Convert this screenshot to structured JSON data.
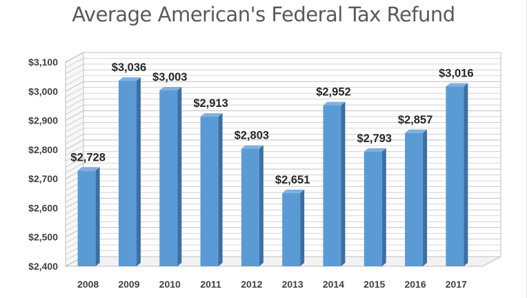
{
  "chart_data": {
    "type": "bar",
    "title": "Average American's Federal Tax Refund",
    "categories": [
      "2008",
      "2009",
      "2010",
      "2011",
      "2012",
      "2013",
      "2014",
      "2015",
      "2016",
      "2017"
    ],
    "values": [
      2728,
      3036,
      3003,
      2913,
      2803,
      2651,
      2952,
      2793,
      2857,
      3016
    ],
    "data_labels": [
      "$2,728",
      "$3,036",
      "$3,003",
      "$2,913",
      "$2,803",
      "$2,651",
      "$2,952",
      "$2,793",
      "$2,857",
      "$3,016"
    ],
    "y_ticks": [
      "$2,400",
      "$2,500",
      "$2,600",
      "$2,700",
      "$2,800",
      "$2,900",
      "$3,000",
      "$3,100"
    ],
    "ylim": [
      2400,
      3100
    ],
    "grid": true,
    "style": "3d-column",
    "colors": {
      "bar": "#5b9bd5",
      "bar_side": "#3c6fa3",
      "bar_top": "#7fb1e0",
      "grid": "#bfbfbf"
    }
  }
}
